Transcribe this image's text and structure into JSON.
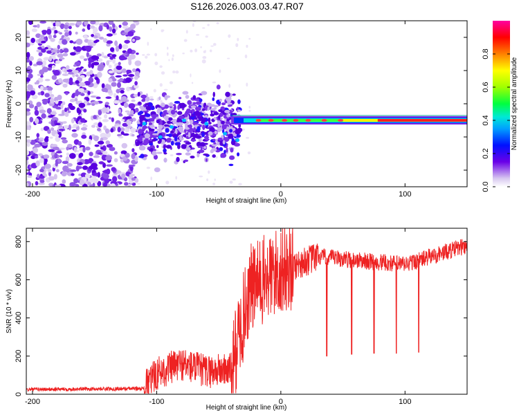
{
  "title": "S126.2026.003.03.47.R07",
  "chart_data": [
    {
      "type": "heatmap",
      "name": "spectrogram",
      "xlabel": "Height of straight line (km)",
      "ylabel": "Frequency (Hz)",
      "xlim": [
        -205,
        150
      ],
      "ylim": [
        -25,
        25
      ],
      "xticks": [
        -200,
        -100,
        0,
        100
      ],
      "yticks": [
        -20,
        -10,
        0,
        10,
        20
      ],
      "noise_region_km": [
        -205,
        -115
      ],
      "scatter_region_km": [
        -115,
        -33
      ],
      "signal_start_km": -40,
      "signal_freq_hz": -5,
      "colorbar": {
        "label": "Normalized spectral amplitude",
        "range": [
          0,
          1
        ],
        "ticks": [
          0.0,
          0.2,
          0.4,
          0.6,
          0.8
        ]
      }
    },
    {
      "type": "line",
      "name": "snr",
      "xlabel": "Height of straight line (km)",
      "ylabel": "SNR (10 * v/v)",
      "xlim": [
        -205,
        150
      ],
      "ylim": [
        0,
        870
      ],
      "xticks": [
        -200,
        -100,
        0,
        100
      ],
      "yticks": [
        0,
        200,
        400,
        600,
        800
      ],
      "color": "#ee2222",
      "key_points": [
        {
          "x": -205,
          "y": 25
        },
        {
          "x": -110,
          "y": 30
        },
        {
          "x": -100,
          "y": 110
        },
        {
          "x": -80,
          "y": 160
        },
        {
          "x": -60,
          "y": 120
        },
        {
          "x": -40,
          "y": 130
        },
        {
          "x": -25,
          "y": 550
        },
        {
          "x": 0,
          "y": 650
        },
        {
          "x": 30,
          "y": 720
        },
        {
          "x": 100,
          "y": 680
        },
        {
          "x": 150,
          "y": 780
        }
      ],
      "dropouts": [
        {
          "x": 37,
          "y": 200
        },
        {
          "x": 57,
          "y": 210
        },
        {
          "x": 75,
          "y": 215
        },
        {
          "x": 93,
          "y": 215
        },
        {
          "x": 111,
          "y": 220
        }
      ]
    }
  ]
}
